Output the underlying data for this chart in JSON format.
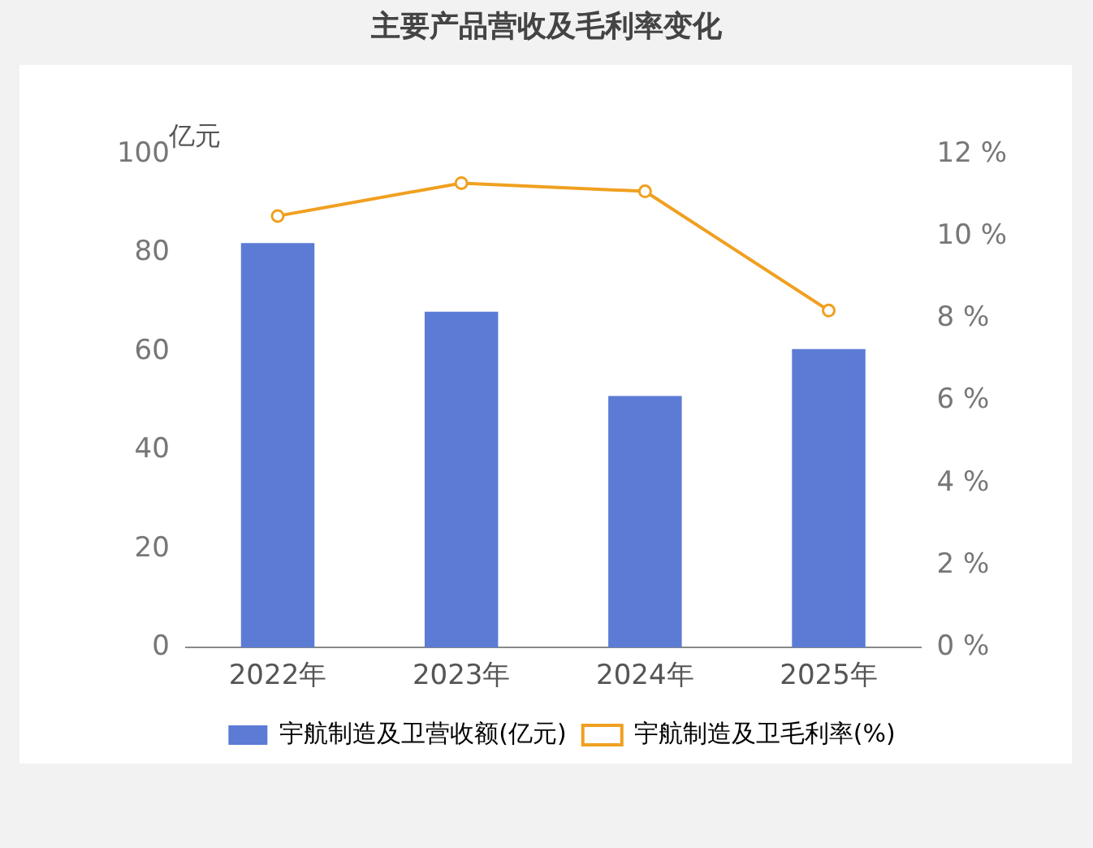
{
  "chart_data": {
    "type": "bar",
    "title": "主要产品营收及毛利率变化",
    "ylabel": "亿元",
    "categories": [
      "2022年",
      "2023年",
      "2024年",
      "2025年"
    ],
    "series": [
      {
        "name": "宇航制造及卫营收额(亿元)",
        "color": "#5b7bd5",
        "values": [
          82.0,
          68.1,
          51.0,
          60.5
        ]
      },
      {
        "name": "宇航制造及卫毛利率(%)",
        "type": "line",
        "axis": "y2",
        "color": "#f0a020",
        "marker": "circle",
        "values": [
          10.5,
          11.3,
          11.1,
          8.2
        ]
      }
    ],
    "ylim": [
      0,
      100
    ],
    "yticks": [
      0,
      20,
      40,
      60,
      80,
      100
    ],
    "y2lim": [
      0,
      12
    ],
    "y2ticks": [
      {
        "value": 0,
        "label": "0 %"
      },
      {
        "value": 2,
        "label": "2 %"
      },
      {
        "value": 4,
        "label": "4 %"
      },
      {
        "value": 6,
        "label": "6 %"
      },
      {
        "value": 8,
        "label": "8 %"
      },
      {
        "value": 10,
        "label": "10 %"
      },
      {
        "value": 12,
        "label": "12 %"
      }
    ],
    "grid": false,
    "legend": "bottom"
  }
}
